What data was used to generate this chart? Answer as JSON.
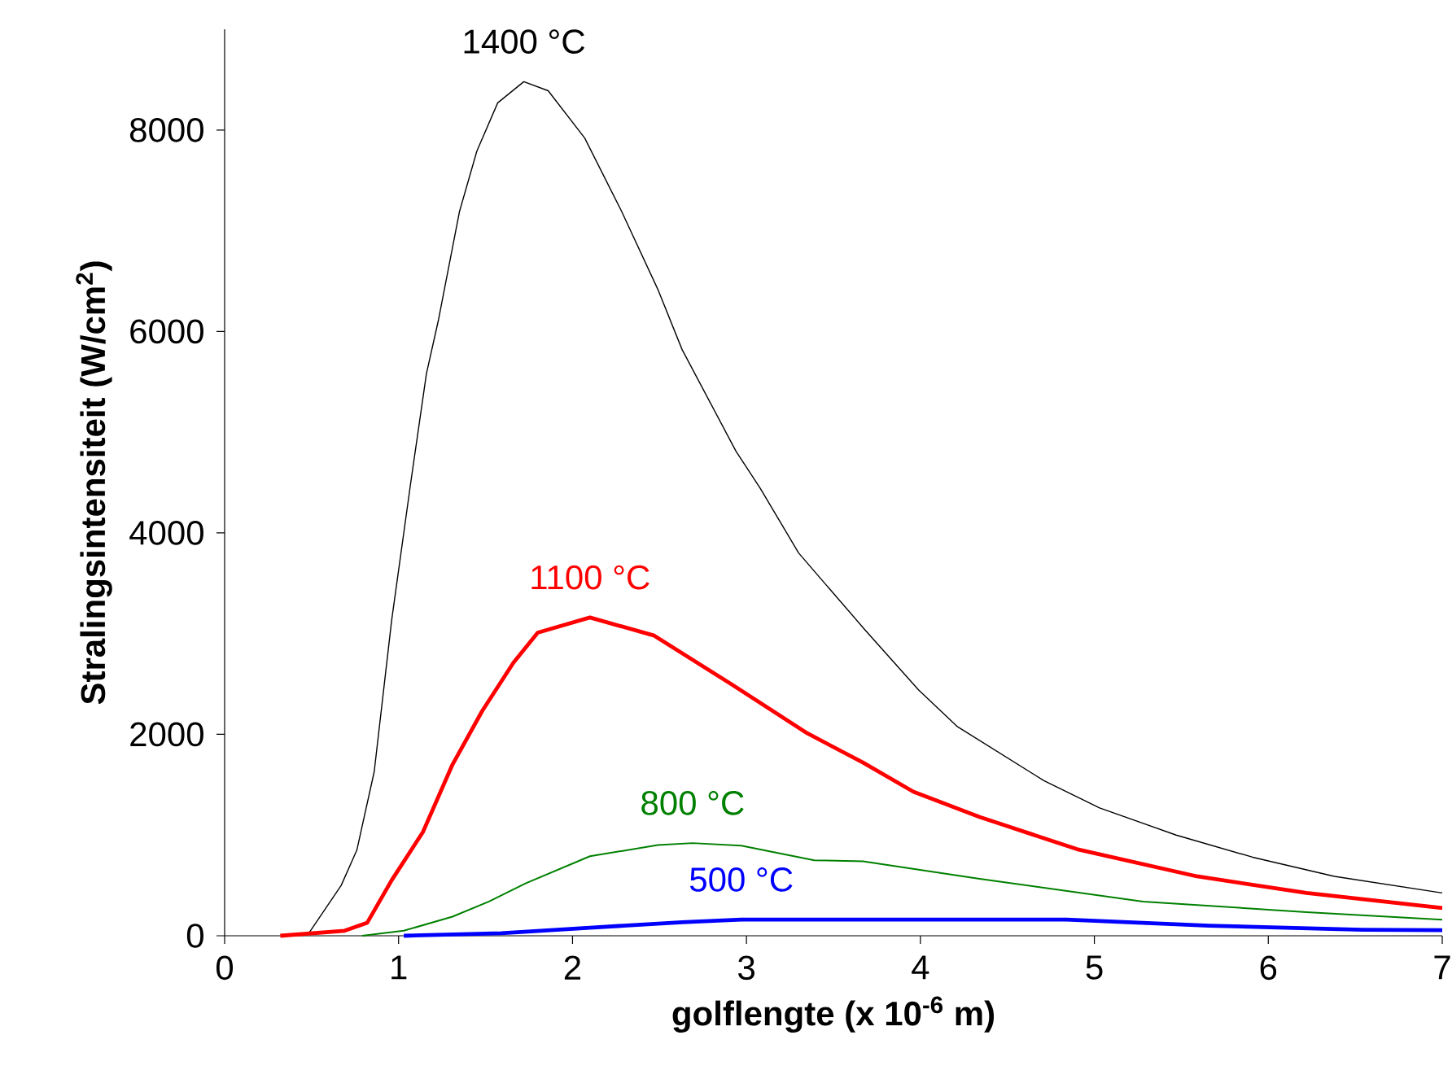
{
  "chart_data": {
    "type": "line",
    "xlabel": "golflengte (x 10$^{-6}$ m)",
    "ylabel": "Stralingsintensiteit (W/cm$^{2}$)",
    "xlim": [
      0,
      7
    ],
    "ylim": [
      0,
      9000
    ],
    "xticks": [
      0,
      1,
      2,
      3,
      4,
      5,
      6,
      7
    ],
    "yticks": [
      0,
      2000,
      4000,
      6000,
      8000
    ],
    "marker": "none",
    "line_style": "solid",
    "series": [
      {
        "name": "1400 °C",
        "color": "#000000",
        "x": [
          0.35,
          0.48,
          0.67,
          0.76,
          0.86,
          0.96,
          1.07,
          1.16,
          1.23,
          1.35,
          1.45,
          1.57,
          1.72,
          1.86,
          2.07,
          2.28,
          2.49,
          2.63,
          2.94,
          3.08,
          3.3,
          3.68,
          3.99,
          4.21,
          4.71,
          5.03,
          5.47,
          5.91,
          6.38,
          7.0
        ],
        "values": [
          0,
          16,
          500,
          850,
          1630,
          3130,
          4500,
          5580,
          6120,
          7190,
          7790,
          8270,
          8480,
          8390,
          7920,
          7200,
          6420,
          5820,
          4810,
          4440,
          3800,
          3040,
          2440,
          2080,
          1540,
          1270,
          1000,
          780,
          590,
          425
        ]
      },
      {
        "name": "1100 °C",
        "color": "#ff0000",
        "x": [
          0.32,
          0.69,
          0.82,
          0.96,
          1.14,
          1.31,
          1.48,
          1.66,
          1.8,
          2.1,
          2.47,
          2.92,
          3.35,
          3.67,
          3.96,
          4.34,
          4.9,
          5.59,
          6.22,
          7.0
        ],
        "values": [
          0,
          50,
          130,
          550,
          1030,
          1700,
          2230,
          2710,
          3010,
          3160,
          2980,
          2490,
          2010,
          1720,
          1430,
          1180,
          860,
          590,
          425,
          275
        ]
      },
      {
        "name": "800 °C",
        "color": "#008000",
        "x": [
          0.79,
          1.03,
          1.31,
          1.52,
          1.73,
          2.1,
          2.49,
          2.69,
          2.97,
          3.39,
          3.67,
          4.34,
          5.28,
          6.22,
          7.0
        ],
        "values": [
          0,
          50,
          190,
          340,
          520,
          790,
          900,
          920,
          895,
          750,
          740,
          565,
          340,
          235,
          160
        ]
      },
      {
        "name": "500 °C",
        "color": "#0000ff",
        "x": [
          1.03,
          1.59,
          2.1,
          2.63,
          2.97,
          4.84,
          5.66,
          6.54,
          7.0
        ],
        "values": [
          0,
          25,
          80,
          135,
          160,
          160,
          100,
          60,
          55
        ]
      }
    ]
  }
}
